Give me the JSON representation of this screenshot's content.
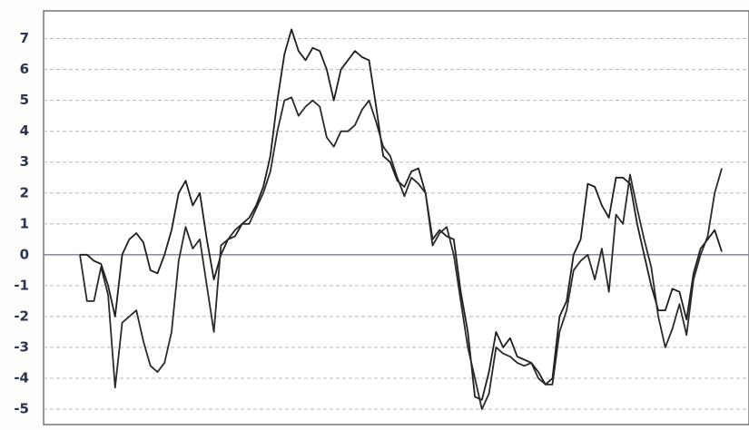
{
  "chart_data": {
    "type": "line",
    "ylim": [
      -5.5,
      7.9
    ],
    "yticks": [
      -5,
      -4,
      -3,
      -2,
      -1,
      0,
      1,
      2,
      3,
      4,
      5,
      6,
      7
    ],
    "grid": true,
    "series": [
      {
        "color": "#1e1e1e",
        "values": [
          0,
          0,
          -0.2,
          -0.3,
          -1.0,
          -2.0,
          0,
          0.5,
          0.7,
          0.4,
          -0.5,
          -0.6,
          0,
          0.8,
          2.0,
          2.4,
          1.6,
          2.0,
          0.5,
          -0.8,
          0,
          0.5,
          0.6,
          1.0,
          1.2,
          1.6,
          2.2,
          3.2,
          5.0,
          6.5,
          7.3,
          6.6,
          6.3,
          6.7,
          6.6,
          6.0,
          5.0,
          6.0,
          6.3,
          6.6,
          6.4,
          6.3,
          4.8,
          3.2,
          3.0,
          2.4,
          2.2,
          2.7,
          2.8,
          2.0,
          0.5,
          0.8,
          0.6,
          0.5,
          -1.2,
          -2.5,
          -4.6,
          -4.7,
          -3.8,
          -2.5,
          -3.0,
          -2.7,
          -3.3,
          -3.4,
          -3.5,
          -3.8,
          -4.2,
          -4.0,
          -2.0,
          -1.5,
          0,
          0.5,
          2.3,
          2.2,
          1.6,
          1.2,
          2.5,
          2.5,
          2.3,
          1.0,
          0,
          -1.0,
          -1.8,
          -1.8,
          -1.1,
          -1.2,
          -2.1,
          -0.6,
          0.2,
          0.5,
          0.8,
          0.1
        ]
      },
      {
        "color": "#2a2a2a",
        "values": [
          0,
          -1.5,
          -1.5,
          -0.4,
          -1.3,
          -4.3,
          -2.2,
          -2.0,
          -1.8,
          -2.8,
          -3.6,
          -3.8,
          -3.5,
          -2.5,
          -0.2,
          0.9,
          0.2,
          0.5,
          -1.0,
          -2.5,
          0.3,
          0.5,
          0.8,
          1.0,
          1.0,
          1.5,
          2.0,
          2.7,
          4.0,
          5.0,
          5.1,
          4.5,
          4.8,
          5.0,
          4.8,
          3.8,
          3.5,
          4.0,
          4.0,
          4.2,
          4.7,
          5.0,
          4.3,
          3.5,
          3.2,
          2.5,
          1.9,
          2.5,
          2.3,
          2.0,
          0.3,
          0.7,
          0.9,
          0,
          -1.5,
          -3.0,
          -4.0,
          -5.0,
          -4.5,
          -3.0,
          -3.2,
          -3.3,
          -3.5,
          -3.6,
          -3.5,
          -4.0,
          -4.2,
          -4.2,
          -2.5,
          -1.8,
          -0.5,
          -0.2,
          0,
          -0.8,
          0.2,
          -1.2,
          1.3,
          1.0,
          2.6,
          1.5,
          0.5,
          -0.4,
          -2.0,
          -3.0,
          -2.4,
          -1.6,
          -2.6,
          -0.8,
          0,
          0.6,
          2.0,
          2.8
        ]
      }
    ]
  }
}
